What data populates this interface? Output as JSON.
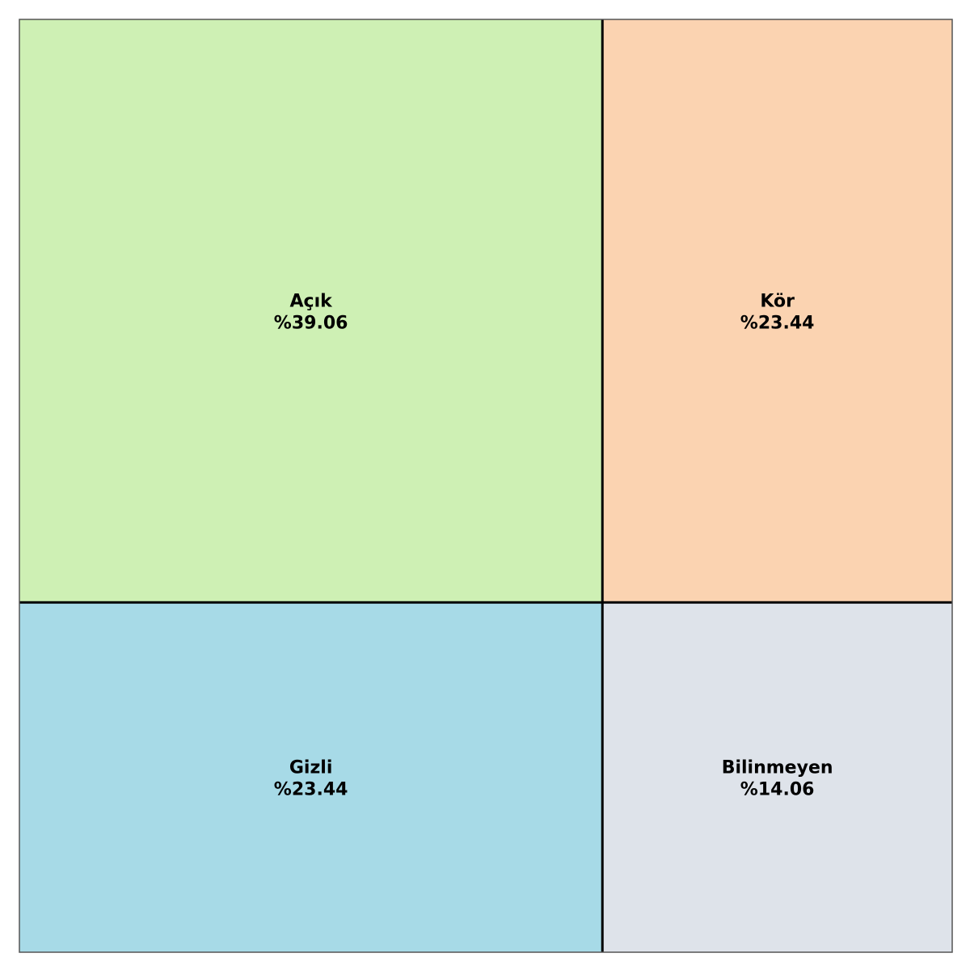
{
  "chart_data": {
    "type": "mosaic",
    "quadrants": [
      {
        "name": "Açık",
        "label": "%39.06",
        "value": 39.06,
        "color": "#CEF0B4"
      },
      {
        "name": "Kör",
        "label": "%23.44",
        "value": 23.44,
        "color": "#FBD3B1"
      },
      {
        "name": "Gizli",
        "label": "%23.44",
        "value": 23.44,
        "color": "#A7DAE7"
      },
      {
        "name": "Bilinmeyen",
        "label": "%14.06",
        "value": 14.06,
        "color": "#DEE3EA"
      }
    ],
    "column_fraction_left": 0.625,
    "row_fraction_top": 0.625,
    "divider_color": "#000000",
    "frame_color": "#555555"
  }
}
